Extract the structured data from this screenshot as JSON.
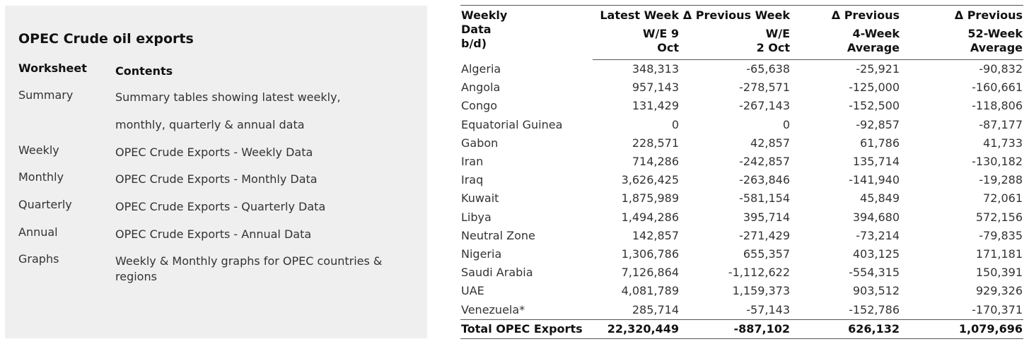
{
  "panel": {
    "title": "OPEC Crude oil exports",
    "worksheet_header": "Worksheet",
    "contents_header": "Contents",
    "rows": [
      {
        "worksheet": "Summary",
        "contents_line1": "Summary tables showing latest weekly,",
        "contents_line2": "monthly, quarterly & annual data"
      },
      {
        "worksheet": "Weekly",
        "contents_line1": "OPEC Crude Exports - Weekly Data"
      },
      {
        "worksheet": "Monthly",
        "contents_line1": "OPEC Crude Exports - Monthly Data"
      },
      {
        "worksheet": "Quarterly",
        "contents_line1": "OPEC Crude Exports - Quarterly Data"
      },
      {
        "worksheet": "Annual",
        "contents_line1": "OPEC Crude Exports - Annual Data"
      },
      {
        "worksheet": "Graphs",
        "contents_line1": "Weekly & Monthly graphs for OPEC countries &",
        "contents_line2": "regions"
      }
    ]
  },
  "table": {
    "header": {
      "country_line1": "Weekly",
      "country_line2": "Data",
      "country_line3": "b/d)",
      "latest_line1": "Latest Week",
      "latest_line2": "W/E 9",
      "latest_line3": "Oct",
      "prev_line1": "Δ Previous Week",
      "prev_line2": "W/E",
      "prev_line3": "2 Oct",
      "avg4_line1": "Δ Previous",
      "avg4_line2": "4-Week",
      "avg4_line3": "Average",
      "avg52_line1": "Δ Previous",
      "avg52_line2": "52-Week",
      "avg52_line3": "Average"
    },
    "rows": [
      {
        "country": "Algeria",
        "latest": "348,313",
        "prev": "-65,638",
        "avg4": "-25,921",
        "avg52": "-90,832"
      },
      {
        "country": "Angola",
        "latest": "957,143",
        "prev": "-278,571",
        "avg4": "-125,000",
        "avg52": "-160,661"
      },
      {
        "country": "Congo",
        "latest": "131,429",
        "prev": "-267,143",
        "avg4": "-152,500",
        "avg52": "-118,806"
      },
      {
        "country": "Equatorial Guinea",
        "latest": "0",
        "prev": "0",
        "avg4": "-92,857",
        "avg52": "-87,177"
      },
      {
        "country": "Gabon",
        "latest": "228,571",
        "prev": "42,857",
        "avg4": "61,786",
        "avg52": "41,733"
      },
      {
        "country": "Iran",
        "latest": "714,286",
        "prev": "-242,857",
        "avg4": "135,714",
        "avg52": "-130,182"
      },
      {
        "country": "Iraq",
        "latest": "3,626,425",
        "prev": "-263,846",
        "avg4": "-141,940",
        "avg52": "-19,288"
      },
      {
        "country": "Kuwait",
        "latest": "1,875,989",
        "prev": "-581,154",
        "avg4": "45,849",
        "avg52": "72,061"
      },
      {
        "country": "Libya",
        "latest": "1,494,286",
        "prev": "395,714",
        "avg4": "394,680",
        "avg52": "572,156"
      },
      {
        "country": "Neutral Zone",
        "latest": "142,857",
        "prev": "-271,429",
        "avg4": "-73,214",
        "avg52": "-79,835"
      },
      {
        "country": "Nigeria",
        "latest": "1,306,786",
        "prev": "655,357",
        "avg4": "403,125",
        "avg52": "171,181"
      },
      {
        "country": "Saudi Arabia",
        "latest": "7,126,864",
        "prev": "-1,112,622",
        "avg4": "-554,315",
        "avg52": "150,391"
      },
      {
        "country": "UAE",
        "latest": "4,081,789",
        "prev": "1,159,373",
        "avg4": "903,512",
        "avg52": "929,326"
      },
      {
        "country": "Venezuela*",
        "latest": "285,714",
        "prev": "-57,143",
        "avg4": "-152,786",
        "avg52": "-170,371"
      }
    ],
    "total": {
      "country": "Total OPEC Exports",
      "latest": "22,320,449",
      "prev": "-887,102",
      "avg4": "626,132",
      "avg52": "1,079,696"
    }
  }
}
